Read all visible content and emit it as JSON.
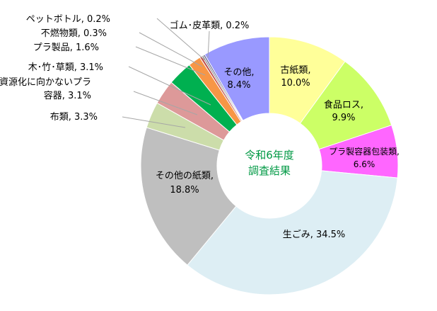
{
  "chart_data": {
    "type": "pie",
    "style": "donut",
    "center_label": [
      "令和6年度",
      "調査結果"
    ],
    "center_label_color": "#009944",
    "start_angle": "top",
    "direction": "clockwise",
    "legend": "none",
    "slices": [
      {
        "name": "古紙類",
        "value": 10.0,
        "label": [
          "古紙類,",
          "10.0%"
        ],
        "color": "#FFFF99"
      },
      {
        "name": "食品ロス",
        "value": 9.9,
        "label": [
          "食品ロス,",
          "9.9%"
        ],
        "color": "#CCFF66"
      },
      {
        "name": "プラ製容器包装類",
        "value": 6.6,
        "label": [
          "プラ製容器包装類,",
          "6.6%"
        ],
        "color": "#FF66FF"
      },
      {
        "name": "生ごみ",
        "value": 34.5,
        "label": [
          "生ごみ, 34.5%"
        ],
        "color": "#DDEEF4"
      },
      {
        "name": "その他の紙類",
        "value": 18.8,
        "label": [
          "その他の紙類,",
          "18.8%"
        ],
        "color": "#BFBFBF"
      },
      {
        "name": "布類",
        "value": 3.3,
        "label": [
          "布類, 3.3%"
        ],
        "color": "#CCDDAA"
      },
      {
        "name": "資源化に向かないプラ容器",
        "value": 3.1,
        "label": [
          "資源化に向かないプラ",
          "容器, 3.1%"
        ],
        "color": "#DD9999"
      },
      {
        "name": "木・竹・草類",
        "value": 3.1,
        "label": [
          "木･竹･草類, 3.1%"
        ],
        "color": "#00B050"
      },
      {
        "name": "プラ製品",
        "value": 1.6,
        "label": [
          "プラ製品, 1.6%"
        ],
        "color": "#F79646"
      },
      {
        "name": "不燃物類",
        "value": 0.3,
        "label": [
          "不燃物類, 0.3%"
        ],
        "color": "#C0504D"
      },
      {
        "name": "ペットボトル",
        "value": 0.2,
        "label": [
          "ペットボトル, 0.2%"
        ],
        "color": "#7F7F7F"
      },
      {
        "name": "ゴム・皮革類",
        "value": 0.2,
        "label": [
          "ゴム･皮革類, 0.2%"
        ],
        "color": "#4F4F7F"
      },
      {
        "name": "その他",
        "value": 8.4,
        "label": [
          "その他,",
          "8.4%"
        ],
        "color": "#9999FF"
      }
    ]
  }
}
